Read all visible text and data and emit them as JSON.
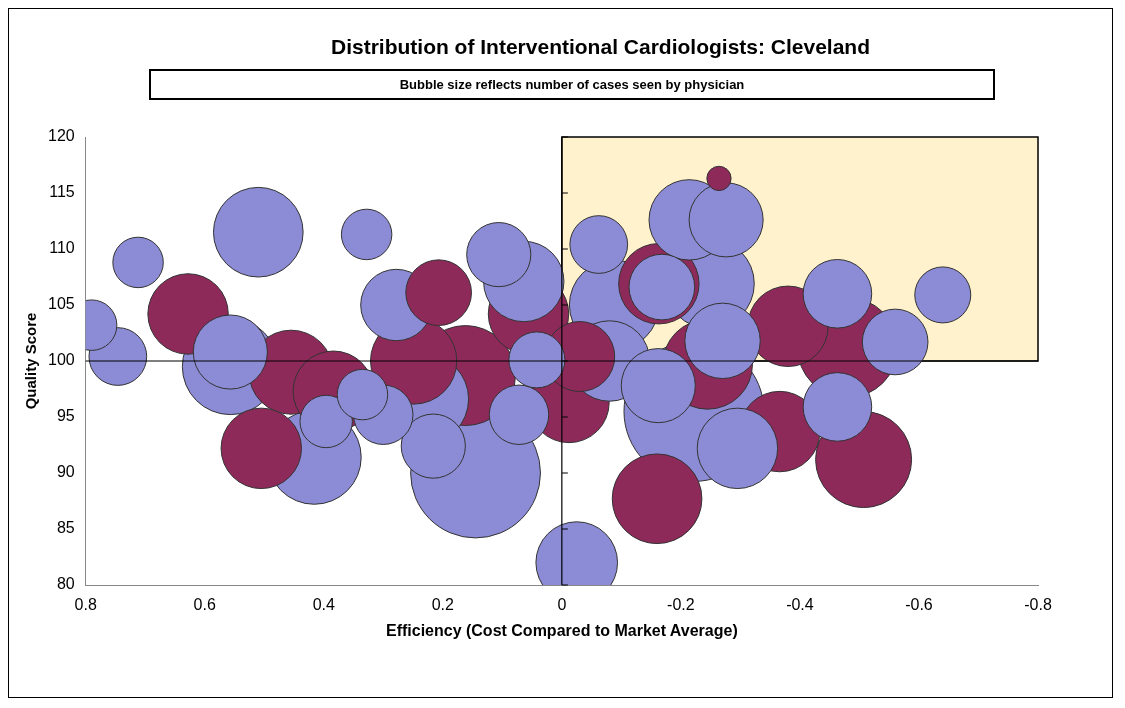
{
  "chart_data": {
    "type": "bubble",
    "title": "Distribution of Interventional Cardiologists: Cleveland",
    "subtitle": "Bubble size reflects number of cases seen by physician",
    "xlabel": "Efficiency (Cost Compared to Market Average)",
    "ylabel": "Quality Score",
    "xlim": [
      0.8,
      -0.8
    ],
    "xticks": [
      0.8,
      0.6,
      0.4,
      0.2,
      0,
      -0.2,
      -0.4,
      -0.6,
      -0.8
    ],
    "ylim": [
      80,
      120
    ],
    "yticks": [
      80,
      85,
      90,
      95,
      100,
      105,
      110,
      115,
      120
    ],
    "grid": false,
    "legend": false,
    "ref_lines": [
      {
        "axis": "y",
        "value": 100,
        "label": null
      },
      {
        "axis": "x",
        "value": 0,
        "label": null
      }
    ],
    "bands": [
      {
        "axis": "x",
        "from": 0,
        "to": -0.8,
        "label": null,
        "color": "#fff2cc"
      }
    ],
    "series": [
      {
        "color": "#8c8cd6",
        "x": [
          -0.222,
          0.145,
          -0.248,
          0.79,
          0.746,
          0.712,
          0.51,
          0.328,
          0.557,
          0.557,
          0.278,
          0.335,
          0.396,
          0.416,
          0.3,
          0.232,
          0.216,
          0.106,
          0.064,
          0.072,
          0.042,
          -0.025,
          -0.062,
          -0.088,
          -0.168,
          -0.214,
          -0.276,
          -0.27,
          -0.162,
          -0.295,
          -0.463,
          -0.463,
          -0.56,
          -0.64,
          -0.08
        ],
        "values": [
          95.5,
          90,
          106.9,
          103.2,
          100.4,
          108.8,
          111.5,
          111.3,
          99.5,
          100.8,
          105,
          97,
          94.6,
          91.4,
          95.2,
          96.6,
          92.4,
          109.5,
          107.1,
          95.2,
          100.1,
          82,
          110.4,
          105,
          106.6,
          112.6,
          112.6,
          101.8,
          97.8,
          92.2,
          106,
          95.9,
          101.7,
          105.9,
          100
        ],
        "sizes": [
          1,
          0.86,
          0.41,
          0.13,
          0.17,
          0.13,
          0.41,
          0.13,
          0.47,
          0.28,
          0.26,
          0.13,
          0.14,
          0.45,
          0.18,
          0.41,
          0.21,
          0.21,
          0.33,
          0.18,
          0.16,
          0.34,
          0.17,
          0.41,
          0.22,
          0.33,
          0.28,
          0.29,
          0.28,
          0.33,
          0.24,
          0.24,
          0.22,
          0.16,
          0.33
        ]
      },
      {
        "color": "#8e2a5a",
        "x": [
          0.628,
          0.455,
          0.384,
          0.505,
          0.249,
          0.207,
          0.162,
          0.056,
          -0.012,
          -0.03,
          -0.163,
          -0.245,
          -0.366,
          -0.16,
          -0.38,
          -0.48,
          -0.507,
          -0.264
        ],
        "values": [
          104.2,
          99,
          97.3,
          92.2,
          100,
          106.1,
          98.7,
          104.2,
          96.3,
          100.4,
          106.9,
          99.7,
          93.7,
          87.7,
          103.1,
          101.2,
          91.2,
          116.3
        ],
        "sizes": [
          0.33,
          0.36,
          0.33,
          0.33,
          0.38,
          0.22,
          0.51,
          0.33,
          0.33,
          0.25,
          0.33,
          0.41,
          0.33,
          0.41,
          0.33,
          0.51,
          0.47,
          0.03
        ]
      }
    ]
  }
}
